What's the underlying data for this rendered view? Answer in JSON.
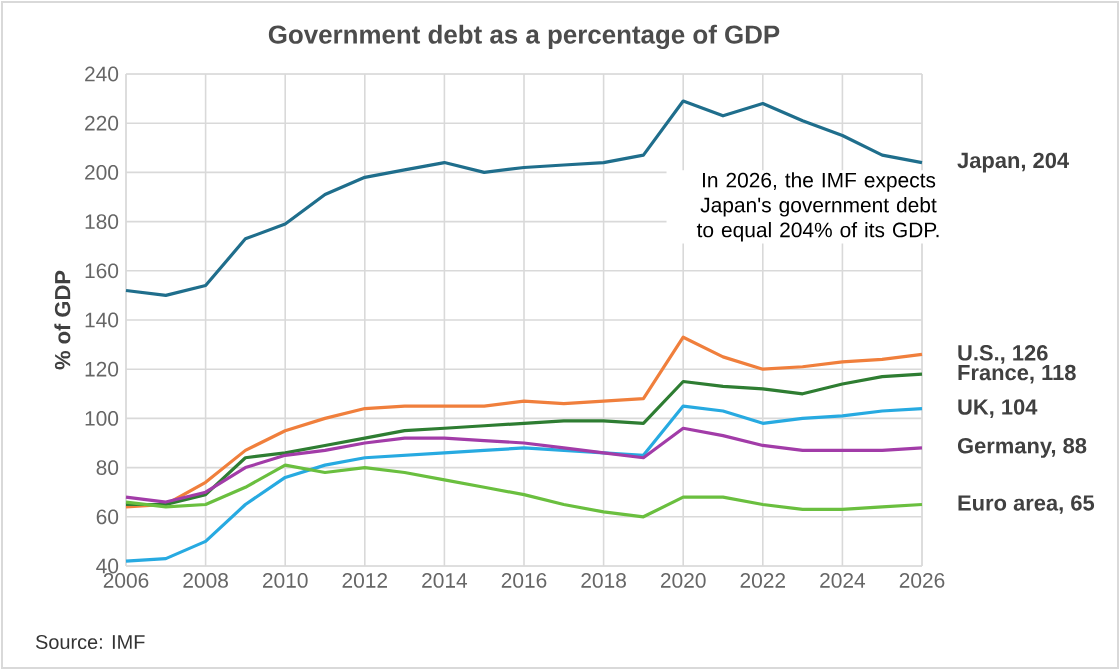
{
  "chart_data": {
    "type": "line",
    "title": "Government debt as a percentage of GDP",
    "ylabel": "% of GDP",
    "x": [
      2006,
      2007,
      2008,
      2009,
      2010,
      2011,
      2012,
      2013,
      2014,
      2015,
      2016,
      2017,
      2018,
      2019,
      2020,
      2021,
      2022,
      2023,
      2024,
      2025,
      2026
    ],
    "series": [
      {
        "name": "Japan, 204",
        "color": "#1f6e8c",
        "values": [
          152,
          150,
          154,
          173,
          179,
          191,
          198,
          201,
          204,
          200,
          202,
          203,
          204,
          207,
          229,
          223,
          228,
          221,
          215,
          207,
          204
        ]
      },
      {
        "name": "U.S., 126",
        "color": "#f07f3c",
        "values": [
          64,
          65,
          74,
          87,
          95,
          100,
          104,
          105,
          105,
          105,
          107,
          106,
          107,
          108,
          133,
          125,
          120,
          121,
          123,
          124,
          126
        ]
      },
      {
        "name": "France, 118",
        "color": "#2e7d32",
        "values": [
          65,
          65,
          69,
          84,
          86,
          89,
          92,
          95,
          96,
          97,
          98,
          99,
          99,
          98,
          115,
          113,
          112,
          110,
          114,
          117,
          118
        ]
      },
      {
        "name": "UK, 104",
        "color": "#27aae1",
        "values": [
          42,
          43,
          50,
          65,
          76,
          81,
          84,
          85,
          86,
          87,
          88,
          87,
          86,
          85,
          105,
          103,
          98,
          100,
          101,
          103,
          104
        ]
      },
      {
        "name": "Germany, 88",
        "color": "#a23ca8",
        "values": [
          68,
          66,
          70,
          80,
          85,
          87,
          90,
          92,
          92,
          91,
          90,
          88,
          86,
          84,
          96,
          93,
          89,
          87,
          87,
          87,
          88
        ]
      },
      {
        "name": "Euro area, 65",
        "color": "#6abf3f",
        "values": [
          66,
          64,
          65,
          72,
          81,
          78,
          80,
          78,
          75,
          72,
          69,
          65,
          62,
          60,
          68,
          68,
          65,
          63,
          63,
          64,
          65
        ]
      }
    ],
    "xlim": [
      2006,
      2026
    ],
    "xticks": [
      2006,
      2008,
      2010,
      2012,
      2014,
      2016,
      2018,
      2020,
      2022,
      2024,
      2026
    ],
    "ylim": [
      40,
      240
    ],
    "yticks": [
      40,
      60,
      80,
      100,
      120,
      140,
      160,
      180,
      200,
      220,
      240
    ],
    "grid": true,
    "legend": false,
    "marker": "none",
    "line_style": "solid",
    "annotations": [
      "In 2026, the IMF expects Japan's government debt to equal 204% of its GDP.",
      "Source: IMF"
    ]
  }
}
